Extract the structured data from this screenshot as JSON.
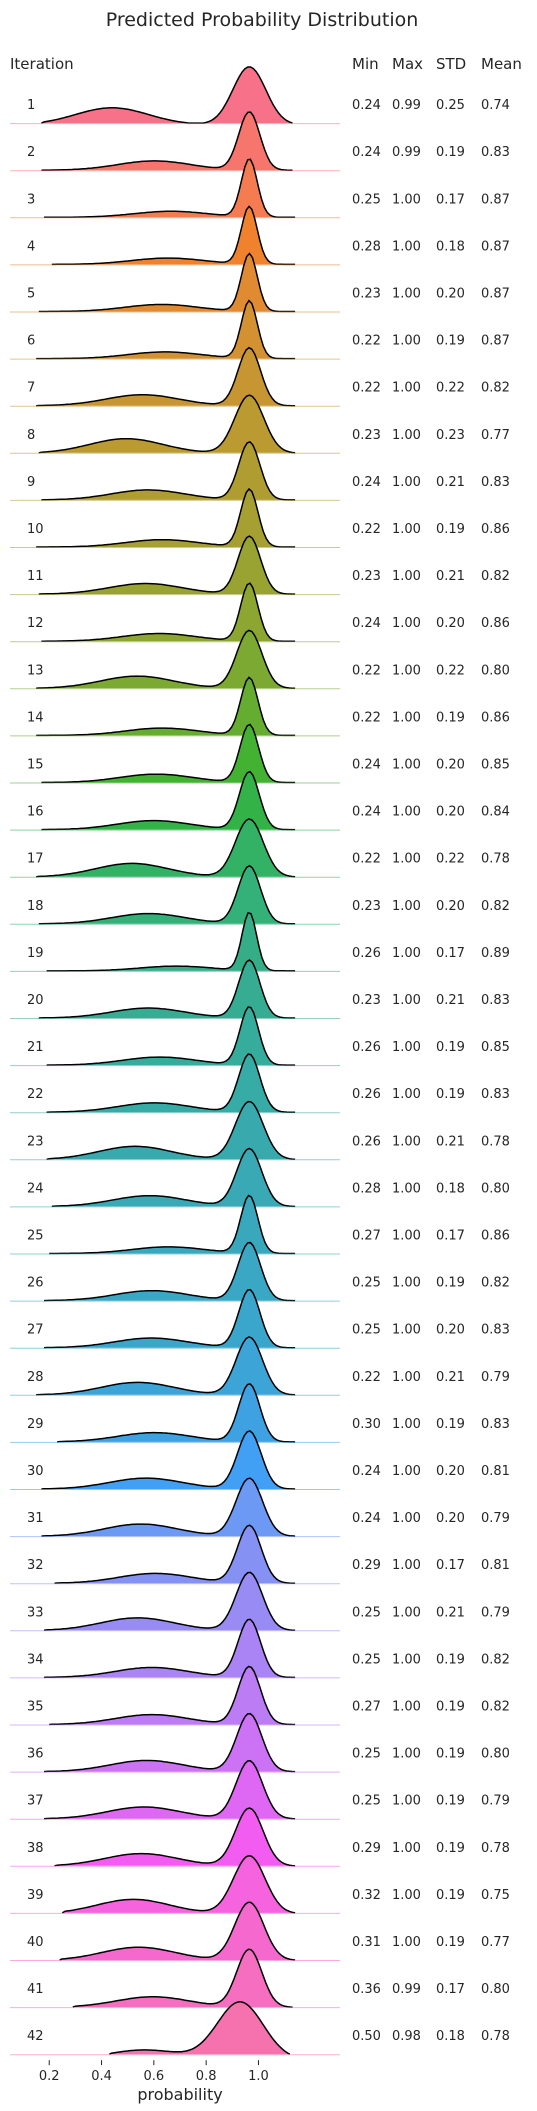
{
  "chart_data": {
    "type": "ridgeline",
    "title": "Predicted Probability Distribution",
    "xlabel": "probability",
    "xlim": [
      0.05,
      1.35
    ],
    "xticks": [
      0.2,
      0.4,
      0.6,
      0.8,
      1.0
    ],
    "xtick_labels": [
      "0.2",
      "0.4",
      "0.6",
      "0.8",
      "1.0"
    ],
    "grid": false,
    "columns": {
      "iteration": "Iteration",
      "min": "Min",
      "max": "Max",
      "std": "STD",
      "mean": "Mean"
    },
    "color_start": "#f77189",
    "rows": [
      {
        "iteration": "1",
        "min": "0.24",
        "max": "0.99",
        "std": "0.25",
        "mean": "0.74",
        "color": "#f77189"
      },
      {
        "iteration": "2",
        "min": "0.24",
        "max": "0.99",
        "std": "0.19",
        "mean": "0.83",
        "color": "#f6766e"
      },
      {
        "iteration": "3",
        "min": "0.25",
        "max": "1.00",
        "std": "0.17",
        "mean": "0.87",
        "color": "#f57c51"
      },
      {
        "iteration": "4",
        "min": "0.28",
        "max": "1.00",
        "std": "0.18",
        "mean": "0.87",
        "color": "#f0812d"
      },
      {
        "iteration": "5",
        "min": "0.23",
        "max": "1.00",
        "std": "0.20",
        "mean": "0.87",
        "color": "#e08b31"
      },
      {
        "iteration": "6",
        "min": "0.22",
        "max": "1.00",
        "std": "0.19",
        "mean": "0.87",
        "color": "#d39132"
      },
      {
        "iteration": "7",
        "min": "0.22",
        "max": "1.00",
        "std": "0.22",
        "mean": "0.82",
        "color": "#c79632"
      },
      {
        "iteration": "8",
        "min": "0.23",
        "max": "1.00",
        "std": "0.23",
        "mean": "0.77",
        "color": "#bb9a32"
      },
      {
        "iteration": "9",
        "min": "0.24",
        "max": "1.00",
        "std": "0.21",
        "mean": "0.83",
        "color": "#b09d32"
      },
      {
        "iteration": "10",
        "min": "0.22",
        "max": "1.00",
        "std": "0.19",
        "mean": "0.86",
        "color": "#a5a031"
      },
      {
        "iteration": "11",
        "min": "0.23",
        "max": "1.00",
        "std": "0.21",
        "mean": "0.82",
        "color": "#99a331"
      },
      {
        "iteration": "12",
        "min": "0.24",
        "max": "1.00",
        "std": "0.20",
        "mean": "0.86",
        "color": "#8ca631"
      },
      {
        "iteration": "13",
        "min": "0.22",
        "max": "1.00",
        "std": "0.22",
        "mean": "0.80",
        "color": "#7ba931"
      },
      {
        "iteration": "14",
        "min": "0.22",
        "max": "1.00",
        "std": "0.19",
        "mean": "0.86",
        "color": "#65ad31"
      },
      {
        "iteration": "15",
        "min": "0.24",
        "max": "1.00",
        "std": "0.20",
        "mean": "0.85",
        "color": "#43b131"
      },
      {
        "iteration": "16",
        "min": "0.24",
        "max": "1.00",
        "std": "0.20",
        "mean": "0.84",
        "color": "#32b247"
      },
      {
        "iteration": "17",
        "min": "0.22",
        "max": "1.00",
        "std": "0.22",
        "mean": "0.78",
        "color": "#33b165"
      },
      {
        "iteration": "18",
        "min": "0.23",
        "max": "1.00",
        "std": "0.20",
        "mean": "0.82",
        "color": "#34b079"
      },
      {
        "iteration": "19",
        "min": "0.26",
        "max": "1.00",
        "std": "0.17",
        "mean": "0.89",
        "color": "#35ae88"
      },
      {
        "iteration": "20",
        "min": "0.23",
        "max": "1.00",
        "std": "0.21",
        "mean": "0.83",
        "color": "#36ad93"
      },
      {
        "iteration": "21",
        "min": "0.26",
        "max": "1.00",
        "std": "0.19",
        "mean": "0.85",
        "color": "#36ac9c"
      },
      {
        "iteration": "22",
        "min": "0.26",
        "max": "1.00",
        "std": "0.19",
        "mean": "0.83",
        "color": "#37aba5"
      },
      {
        "iteration": "23",
        "min": "0.26",
        "max": "1.00",
        "std": "0.21",
        "mean": "0.78",
        "color": "#38aaad"
      },
      {
        "iteration": "24",
        "min": "0.28",
        "max": "1.00",
        "std": "0.18",
        "mean": "0.80",
        "color": "#38a9b5"
      },
      {
        "iteration": "25",
        "min": "0.27",
        "max": "1.00",
        "std": "0.17",
        "mean": "0.86",
        "color": "#39a8bc"
      },
      {
        "iteration": "26",
        "min": "0.25",
        "max": "1.00",
        "std": "0.19",
        "mean": "0.82",
        "color": "#3aa7c4"
      },
      {
        "iteration": "27",
        "min": "0.25",
        "max": "1.00",
        "std": "0.20",
        "mean": "0.83",
        "color": "#3ba6cc"
      },
      {
        "iteration": "28",
        "min": "0.22",
        "max": "1.00",
        "std": "0.21",
        "mean": "0.79",
        "color": "#3ca4d6"
      },
      {
        "iteration": "29",
        "min": "0.30",
        "max": "1.00",
        "std": "0.19",
        "mean": "0.83",
        "color": "#3ea2e2"
      },
      {
        "iteration": "30",
        "min": "0.24",
        "max": "1.00",
        "std": "0.20",
        "mean": "0.81",
        "color": "#419ff4"
      },
      {
        "iteration": "31",
        "min": "0.24",
        "max": "1.00",
        "std": "0.20",
        "mean": "0.79",
        "color": "#6b99f4"
      },
      {
        "iteration": "32",
        "min": "0.29",
        "max": "1.00",
        "std": "0.17",
        "mean": "0.81",
        "color": "#8592f4"
      },
      {
        "iteration": "33",
        "min": "0.25",
        "max": "1.00",
        "std": "0.21",
        "mean": "0.79",
        "color": "#998bf4"
      },
      {
        "iteration": "34",
        "min": "0.25",
        "max": "1.00",
        "std": "0.19",
        "mean": "0.82",
        "color": "#aa84f4"
      },
      {
        "iteration": "35",
        "min": "0.27",
        "max": "1.00",
        "std": "0.19",
        "mean": "0.82",
        "color": "#bb7cf4"
      },
      {
        "iteration": "36",
        "min": "0.25",
        "max": "1.00",
        "std": "0.19",
        "mean": "0.80",
        "color": "#cc72f4"
      },
      {
        "iteration": "37",
        "min": "0.25",
        "max": "1.00",
        "std": "0.19",
        "mean": "0.79",
        "color": "#de67f3"
      },
      {
        "iteration": "38",
        "min": "0.29",
        "max": "1.00",
        "std": "0.19",
        "mean": "0.78",
        "color": "#f25cf0"
      },
      {
        "iteration": "39",
        "min": "0.32",
        "max": "1.00",
        "std": "0.19",
        "mean": "0.75",
        "color": "#f563df"
      },
      {
        "iteration": "40",
        "min": "0.31",
        "max": "1.00",
        "std": "0.19",
        "mean": "0.77",
        "color": "#f569cf"
      },
      {
        "iteration": "41",
        "min": "0.36",
        "max": "0.99",
        "std": "0.17",
        "mean": "0.80",
        "color": "#f66ebf"
      },
      {
        "iteration": "42",
        "min": "0.50",
        "max": "0.98",
        "std": "0.18",
        "mean": "0.78",
        "color": "#f672ae"
      }
    ]
  }
}
